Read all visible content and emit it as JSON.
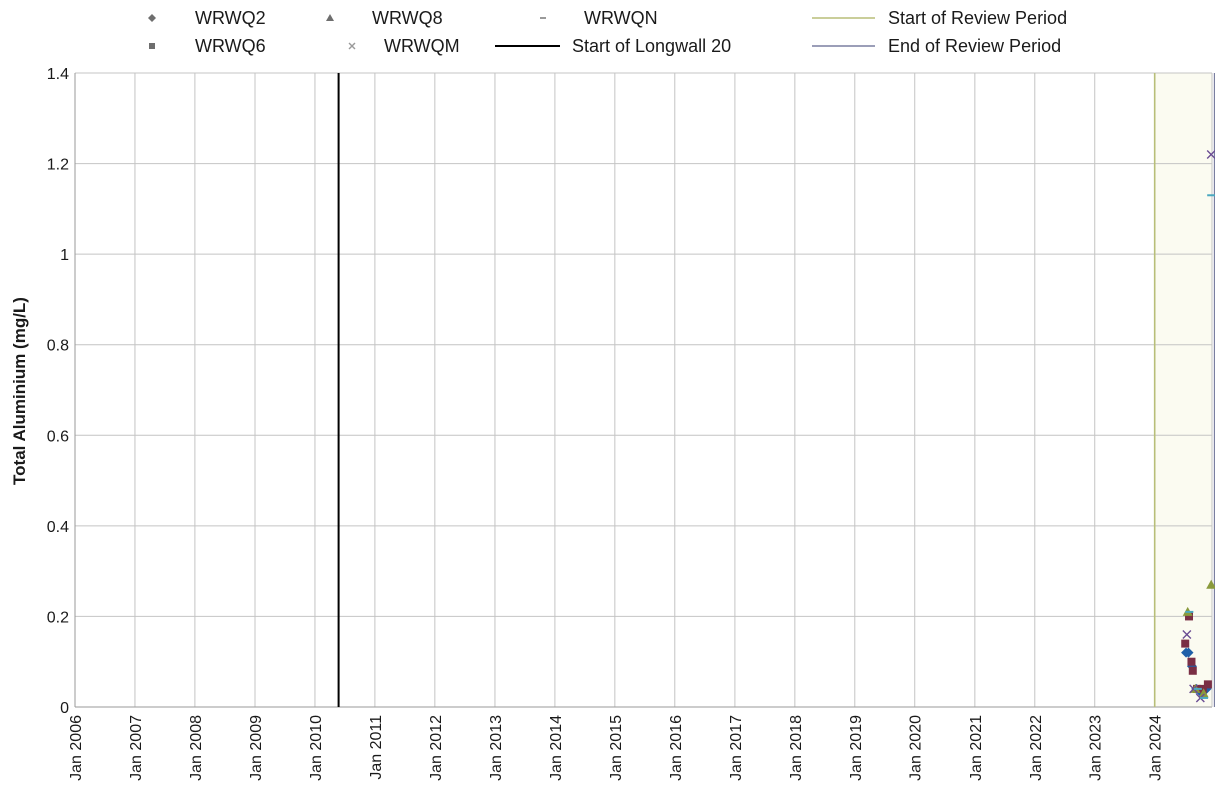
{
  "chart_data": {
    "type": "scatter",
    "title": "",
    "xlabel": "",
    "ylabel": "Total Aluminium (mg/L)",
    "xlim": [
      "2006-01-01",
      "2024-12-15"
    ],
    "ylim": [
      0,
      1.4
    ],
    "y_ticks": [
      "0",
      "0.2",
      "0.4",
      "0.6",
      "0.8",
      "1",
      "1.2",
      "1.4"
    ],
    "x_ticks": [
      "Jan 2006",
      "Jan 2007",
      "Jan 2008",
      "Jan 2009",
      "Jan 2010",
      "Jan 2011",
      "Jan 2012",
      "Jan 2013",
      "Jan 2014",
      "Jan 2015",
      "Jan 2016",
      "Jan 2017",
      "Jan 2018",
      "Jan 2019",
      "Jan 2020",
      "Jan 2021",
      "Jan 2022",
      "Jan 2023",
      "Jan 2024"
    ],
    "grid": true,
    "legend_position": "top",
    "series": [
      {
        "name": "WRWQ2",
        "marker": "diamond",
        "color": "#1f5fa8",
        "x": [
          "2024-07-10",
          "2024-07-25",
          "2024-08-15",
          "2024-09-10",
          "2024-10-15",
          "2024-11-12"
        ],
        "y": [
          0.12,
          0.12,
          0.09,
          0.04,
          0.03,
          0.04
        ]
      },
      {
        "name": "WRWQ6",
        "marker": "square",
        "color": "#7a2f45",
        "x": [
          "2024-07-05",
          "2024-07-28",
          "2024-08-12",
          "2024-08-20",
          "2024-09-15",
          "2024-10-20",
          "2024-11-20"
        ],
        "y": [
          0.14,
          0.2,
          0.1,
          0.08,
          0.04,
          0.04,
          0.05
        ]
      },
      {
        "name": "WRWQ8",
        "marker": "triangle",
        "color": "#8a9a3c",
        "x": [
          "2024-07-20",
          "2024-09-05",
          "2024-10-25",
          "2024-12-10"
        ],
        "y": [
          0.21,
          0.04,
          0.03,
          0.27
        ]
      },
      {
        "name": "WRWQM",
        "marker": "x",
        "color": "#6a4c93",
        "x": [
          "2024-07-15",
          "2024-08-25",
          "2024-10-05",
          "2024-12-10"
        ],
        "y": [
          0.16,
          0.04,
          0.02,
          1.22
        ]
      },
      {
        "name": "WRWQN",
        "marker": "dash",
        "color": "#4aa8c0",
        "x": [
          "2024-07-30",
          "2024-09-20",
          "2024-10-28",
          "2024-12-10"
        ],
        "y": [
          0.21,
          0.04,
          0.02,
          1.13
        ]
      }
    ],
    "reference_lines": [
      {
        "name": "Start of Longwall 20",
        "date": "2010-05-25",
        "color": "#000000",
        "width": 2
      },
      {
        "name": "Start of Review Period",
        "date": "2024-01-01",
        "color": "#b8be78",
        "width": 1.6
      },
      {
        "name": "End of Review Period",
        "date": "2024-12-31",
        "color": "#7a7fa0",
        "width": 1.6
      }
    ]
  },
  "colors": {
    "review_period_fill": "#fbfbf1",
    "grid": "#c4c4c4"
  }
}
